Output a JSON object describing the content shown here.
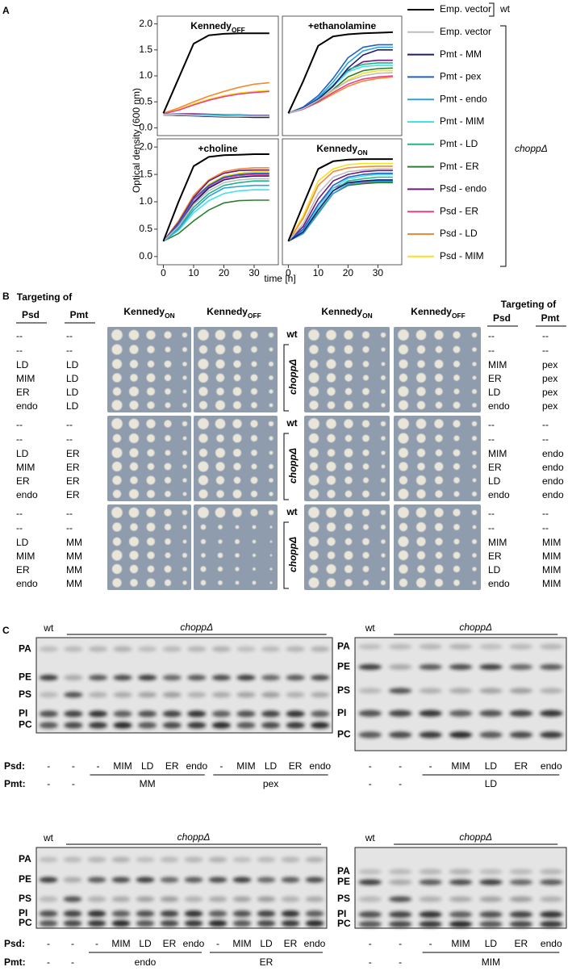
{
  "panel_labels": [
    "A",
    "B",
    "C"
  ],
  "chart_data": [
    {
      "type": "line",
      "title": {
        "text": "Kennedy",
        "sub": "OFF"
      },
      "ylabel": "Optical density (600 nm)",
      "x": [
        0,
        5,
        10,
        15,
        20,
        25,
        30,
        35
      ],
      "xlim": [
        -2,
        38
      ],
      "ylim": [
        -0.15,
        2.15
      ],
      "yticks": [
        {
          "value": 0,
          "label": "0.0"
        },
        {
          "value": 0.5,
          "label": "0.5"
        },
        {
          "value": 1,
          "label": "1.0"
        },
        {
          "value": 1.5,
          "label": "1.5"
        },
        {
          "value": 2,
          "label": "2.0"
        }
      ],
      "series": [
        {
          "values": [
            0.28,
            0.95,
            1.62,
            1.78,
            1.81,
            1.82,
            1.82,
            1.82
          ]
        },
        {
          "values": [
            0.25,
            0.25,
            0.24,
            0.23,
            0.22,
            0.22,
            0.22,
            0.22
          ]
        },
        {
          "values": [
            0.25,
            0.24,
            0.23,
            0.22,
            0.21,
            0.21,
            0.2,
            0.2
          ]
        },
        {
          "values": [
            0.25,
            0.25,
            0.24,
            0.23,
            0.23,
            0.22,
            0.22,
            0.22
          ]
        },
        {
          "values": [
            0.25,
            0.24,
            0.23,
            0.22,
            0.22,
            0.21,
            0.21,
            0.21
          ]
        },
        {
          "values": [
            0.26,
            0.26,
            0.25,
            0.25,
            0.24,
            0.24,
            0.23,
            0.23
          ]
        },
        {
          "values": [
            0.25,
            0.24,
            0.24,
            0.23,
            0.22,
            0.22,
            0.21,
            0.21
          ]
        },
        {
          "values": [
            0.25,
            0.25,
            0.24,
            0.23,
            0.23,
            0.22,
            0.22,
            0.22
          ]
        },
        {
          "values": [
            0.26,
            0.27,
            0.27,
            0.26,
            0.25,
            0.25,
            0.24,
            0.24
          ]
        },
        {
          "values": [
            0.27,
            0.34,
            0.44,
            0.53,
            0.6,
            0.65,
            0.68,
            0.7
          ]
        },
        {
          "values": [
            0.28,
            0.38,
            0.5,
            0.61,
            0.7,
            0.78,
            0.84,
            0.87
          ]
        },
        {
          "values": [
            0.28,
            0.35,
            0.46,
            0.55,
            0.62,
            0.67,
            0.7,
            0.72
          ]
        }
      ]
    },
    {
      "type": "line",
      "title": "+ethanolamine",
      "x": [
        0,
        5,
        10,
        15,
        20,
        25,
        30,
        35
      ],
      "xlim": [
        -2,
        38
      ],
      "ylim": [
        -0.15,
        2.15
      ],
      "series": [
        {
          "values": [
            0.28,
            0.9,
            1.58,
            1.76,
            1.8,
            1.82,
            1.83,
            1.84
          ]
        },
        {
          "values": [
            0.28,
            0.37,
            0.53,
            0.73,
            0.9,
            1.0,
            1.05,
            1.06
          ]
        },
        {
          "values": [
            0.28,
            0.38,
            0.55,
            0.8,
            1.15,
            1.4,
            1.5,
            1.5
          ]
        },
        {
          "values": [
            0.28,
            0.4,
            0.62,
            0.95,
            1.35,
            1.55,
            1.6,
            1.6
          ]
        },
        {
          "values": [
            0.28,
            0.39,
            0.58,
            0.88,
            1.25,
            1.48,
            1.55,
            1.55
          ]
        },
        {
          "values": [
            0.28,
            0.38,
            0.55,
            0.8,
            1.08,
            1.18,
            1.2,
            1.2
          ]
        },
        {
          "values": [
            0.28,
            0.38,
            0.56,
            0.82,
            1.12,
            1.22,
            1.25,
            1.25
          ]
        },
        {
          "values": [
            0.28,
            0.37,
            0.52,
            0.74,
            0.98,
            1.1,
            1.14,
            1.15
          ]
        },
        {
          "values": [
            0.28,
            0.38,
            0.55,
            0.8,
            1.1,
            1.27,
            1.3,
            1.3
          ]
        },
        {
          "values": [
            0.28,
            0.36,
            0.5,
            0.68,
            0.84,
            0.94,
            0.98,
            1.0
          ]
        },
        {
          "values": [
            0.28,
            0.36,
            0.49,
            0.65,
            0.8,
            0.9,
            0.95,
            0.98
          ]
        },
        {
          "values": [
            0.28,
            0.37,
            0.52,
            0.72,
            0.92,
            1.05,
            1.1,
            1.1
          ]
        }
      ]
    },
    {
      "type": "line",
      "title": "+choline",
      "xlabel": "time [h]",
      "x": [
        0,
        5,
        10,
        15,
        20,
        25,
        30,
        35
      ],
      "xlim": [
        -2,
        38
      ],
      "ylim": [
        -0.15,
        2.15
      ],
      "xticks": [
        0,
        10,
        20,
        30
      ],
      "yticks": [
        {
          "value": 0,
          "label": "0.0"
        },
        {
          "value": 0.5,
          "label": "0.5"
        },
        {
          "value": 1,
          "label": "1.0"
        },
        {
          "value": 1.5,
          "label": "1.5"
        },
        {
          "value": 2,
          "label": "2.0"
        }
      ],
      "series": [
        {
          "values": [
            0.28,
            1.0,
            1.65,
            1.82,
            1.85,
            1.86,
            1.87,
            1.87
          ]
        },
        {
          "values": [
            0.28,
            0.55,
            0.95,
            1.2,
            1.35,
            1.4,
            1.42,
            1.42
          ]
        },
        {
          "values": [
            0.28,
            0.55,
            0.98,
            1.25,
            1.4,
            1.45,
            1.47,
            1.47
          ]
        },
        {
          "values": [
            0.28,
            0.6,
            1.05,
            1.3,
            1.45,
            1.5,
            1.52,
            1.52
          ]
        },
        {
          "values": [
            0.28,
            0.5,
            0.85,
            1.1,
            1.25,
            1.28,
            1.3,
            1.3
          ]
        },
        {
          "values": [
            0.28,
            0.48,
            0.8,
            1.02,
            1.15,
            1.2,
            1.22,
            1.22
          ]
        },
        {
          "values": [
            0.28,
            0.52,
            0.9,
            1.15,
            1.3,
            1.35,
            1.38,
            1.38
          ]
        },
        {
          "values": [
            0.28,
            0.42,
            0.65,
            0.85,
            0.98,
            1.02,
            1.03,
            1.03
          ]
        },
        {
          "values": [
            0.28,
            0.62,
            1.08,
            1.38,
            1.52,
            1.57,
            1.58,
            1.58
          ]
        },
        {
          "values": [
            0.28,
            0.58,
            1.0,
            1.28,
            1.43,
            1.48,
            1.5,
            1.5
          ]
        },
        {
          "values": [
            0.28,
            0.65,
            1.12,
            1.4,
            1.55,
            1.6,
            1.62,
            1.62
          ]
        },
        {
          "values": [
            0.28,
            0.6,
            1.05,
            1.32,
            1.47,
            1.52,
            1.55,
            1.55
          ]
        }
      ]
    },
    {
      "type": "line",
      "title": {
        "text": "Kennedy",
        "sub": "ON",
        "color": "#e8201e"
      },
      "x": [
        0,
        5,
        10,
        15,
        20,
        25,
        30,
        35
      ],
      "xlim": [
        -2,
        38
      ],
      "ylim": [
        -0.15,
        2.15
      ],
      "xticks": [
        0,
        10,
        20,
        30
      ],
      "series": [
        {
          "values": [
            0.28,
            0.95,
            1.6,
            1.74,
            1.77,
            1.78,
            1.78,
            1.78
          ]
        },
        {
          "values": [
            0.28,
            0.6,
            1.15,
            1.45,
            1.55,
            1.58,
            1.6,
            1.6
          ]
        },
        {
          "values": [
            0.28,
            0.45,
            0.85,
            1.2,
            1.35,
            1.38,
            1.4,
            1.4
          ]
        },
        {
          "values": [
            0.28,
            0.5,
            0.95,
            1.3,
            1.45,
            1.5,
            1.52,
            1.52
          ]
        },
        {
          "values": [
            0.28,
            0.42,
            0.78,
            1.15,
            1.32,
            1.36,
            1.38,
            1.38
          ]
        },
        {
          "values": [
            0.28,
            0.48,
            0.9,
            1.25,
            1.42,
            1.47,
            1.5,
            1.5
          ]
        },
        {
          "values": [
            0.28,
            0.45,
            0.85,
            1.2,
            1.38,
            1.42,
            1.45,
            1.45
          ]
        },
        {
          "values": [
            0.28,
            0.42,
            0.8,
            1.15,
            1.3,
            1.33,
            1.35,
            1.35
          ]
        },
        {
          "values": [
            0.28,
            0.55,
            1.05,
            1.38,
            1.5,
            1.55,
            1.57,
            1.57
          ]
        },
        {
          "values": [
            0.28,
            0.5,
            0.95,
            1.25,
            1.35,
            1.35,
            1.36,
            1.36
          ]
        },
        {
          "values": [
            0.28,
            0.7,
            1.3,
            1.55,
            1.62,
            1.64,
            1.65,
            1.65
          ]
        },
        {
          "values": [
            0.28,
            0.75,
            1.38,
            1.6,
            1.68,
            1.7,
            1.7,
            1.7
          ]
        }
      ]
    }
  ],
  "legend": {
    "series": [
      {
        "name": "Emp. vector",
        "color": "#000000"
      },
      {
        "name": "Emp. vector",
        "color": "#bdbdbd"
      },
      {
        "name": "Pmt - MM",
        "color": "#1c1c78"
      },
      {
        "name": "Pmt - pex",
        "color": "#1f62c4"
      },
      {
        "name": "Pmt - endo",
        "color": "#2aa3dc"
      },
      {
        "name": "Pmt - MIM",
        "color": "#3fe3ea"
      },
      {
        "name": "Pmt - LD",
        "color": "#1fb585"
      },
      {
        "name": "Pmt - ER",
        "color": "#2e7d32"
      },
      {
        "name": "Psd - endo",
        "color": "#6c1b7c"
      },
      {
        "name": "Psd - ER",
        "color": "#ea3f8a"
      },
      {
        "name": "Psd - LD",
        "color": "#f28a34"
      },
      {
        "name": "Psd - MIM",
        "color": "#f5e21e"
      }
    ],
    "groups": [
      "wt",
      "choppΔ"
    ]
  },
  "spot_assay": {
    "header": "Targeting of",
    "psd": "Psd",
    "pmt": "Pmt",
    "conditions": [
      {
        "text": "Kennedy",
        "sub": "ON",
        "color": "#e8201e"
      },
      {
        "text": "Kennedy",
        "sub": "OFF"
      }
    ],
    "wt": "wt",
    "mutant": "choppΔ",
    "left": [
      {
        "psd": [
          "--",
          "--",
          "LD",
          "MIM",
          "ER",
          "endo"
        ],
        "pmt": [
          "--",
          "--",
          "LD",
          "LD",
          "LD",
          "LD"
        ]
      },
      {
        "psd": [
          "--",
          "--",
          "LD",
          "MIM",
          "ER",
          "endo"
        ],
        "pmt": [
          "--",
          "--",
          "ER",
          "ER",
          "ER",
          "ER"
        ]
      },
      {
        "psd": [
          "--",
          "--",
          "LD",
          "MIM",
          "ER",
          "endo"
        ],
        "pmt": [
          "--",
          "--",
          "MM",
          "MM",
          "MM",
          "MM"
        ]
      }
    ],
    "right": [
      {
        "psd": [
          "--",
          "--",
          "MIM",
          "ER",
          "LD",
          "endo"
        ],
        "pmt": [
          "--",
          "--",
          "pex",
          "pex",
          "pex",
          "pex"
        ]
      },
      {
        "psd": [
          "--",
          "--",
          "MIM",
          "ER",
          "LD",
          "endo"
        ],
        "pmt": [
          "--",
          "--",
          "endo",
          "endo",
          "endo",
          "endo"
        ]
      },
      {
        "psd": [
          "--",
          "--",
          "MIM",
          "ER",
          "LD",
          "endo"
        ],
        "pmt": [
          "--",
          "--",
          "MIM",
          "MIM",
          "MIM",
          "MIM"
        ]
      }
    ]
  },
  "tlc": [
    {
      "wt": "wt",
      "mutant": "choppΔ",
      "bands": [
        "PA",
        "PE",
        "PS",
        "PI",
        "PC"
      ],
      "psd_label": "Psd:",
      "pmt_label": "Pmt:",
      "psd": [
        "-",
        "-",
        "-",
        "MIM",
        "LD",
        "ER",
        "endo",
        "-",
        "MIM",
        "LD",
        "ER",
        "endo"
      ],
      "pmt_singles": [
        "-",
        "-"
      ],
      "pmt_groups": [
        "MM",
        "pex"
      ]
    },
    {
      "wt": "wt",
      "mutant": "choppΔ",
      "bands": [
        "PA",
        "PE",
        "PS",
        "PI",
        "PC"
      ],
      "psd": [
        "-",
        "-",
        "-",
        "MIM",
        "LD",
        "ER",
        "endo"
      ],
      "pmt_singles": [
        "-",
        "-"
      ],
      "pmt_groups": [
        "LD"
      ]
    },
    {
      "wt": "wt",
      "mutant": "choppΔ",
      "bands": [
        "PA",
        "PE",
        "PS",
        "PI",
        "PC"
      ],
      "psd_label": "Psd:",
      "pmt_label": "Pmt:",
      "psd": [
        "-",
        "-",
        "-",
        "MIM",
        "LD",
        "ER",
        "endo",
        "-",
        "MIM",
        "LD",
        "ER",
        "endo"
      ],
      "pmt_singles": [
        "-",
        "-"
      ],
      "pmt_groups": [
        "endo",
        "ER"
      ]
    },
    {
      "wt": "wt",
      "mutant": "choppΔ",
      "bands": [
        "PA",
        "PE",
        "PS",
        "PI",
        "PC"
      ],
      "psd": [
        "-",
        "-",
        "-",
        "MIM",
        "LD",
        "ER",
        "endo"
      ],
      "pmt_singles": [
        "-",
        "-"
      ],
      "pmt_groups": [
        "MIM"
      ]
    }
  ]
}
